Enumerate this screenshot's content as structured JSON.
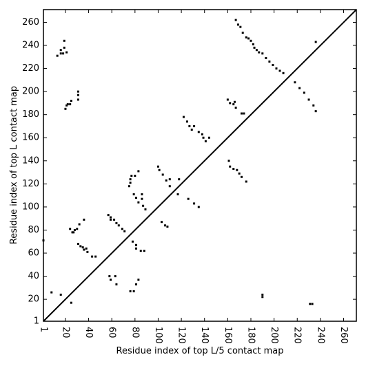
{
  "chart_data": {
    "type": "scatter",
    "x_label": "Residue index of top L/5 contact map",
    "y_label": "Residue index of top L contact map",
    "color": "#000000",
    "xlim": [
      1,
      271
    ],
    "ylim": [
      1,
      271
    ],
    "xticks": [
      1,
      20,
      40,
      60,
      80,
      100,
      120,
      140,
      160,
      180,
      200,
      220,
      240,
      260
    ],
    "yticks": [
      1,
      20,
      40,
      60,
      80,
      100,
      120,
      140,
      160,
      180,
      200,
      220,
      240,
      260
    ],
    "x": [
      1,
      13,
      16,
      16,
      19,
      18,
      21,
      19,
      20,
      21,
      22,
      24,
      25,
      31,
      31,
      31,
      24,
      26,
      27,
      28,
      30,
      32,
      36,
      31,
      33,
      35,
      36,
      38,
      39,
      43,
      46,
      57,
      59,
      59,
      62,
      64,
      66,
      69,
      71,
      75,
      76,
      76,
      77,
      80,
      83,
      79,
      81,
      83,
      86,
      86,
      87,
      89,
      100,
      101,
      104,
      107,
      110,
      110,
      118,
      117,
      122,
      125,
      127,
      129,
      131,
      135,
      138,
      139,
      141,
      144,
      167,
      169,
      171,
      173,
      176,
      178,
      180,
      182,
      183,
      185,
      187,
      190,
      193,
      196,
      199,
      202,
      205,
      208,
      218,
      222,
      226,
      230,
      234,
      236,
      236,
      126,
      131,
      135,
      103,
      106,
      108,
      8,
      16,
      25,
      58,
      59,
      63,
      64,
      76,
      79,
      81,
      83,
      78,
      81,
      81,
      85,
      88,
      160,
      162,
      165,
      167,
      166,
      161,
      162,
      165,
      168,
      170,
      172,
      176,
      172,
      174,
      190,
      190,
      231,
      233
    ],
    "y": [
      71,
      231,
      233,
      236,
      238,
      233,
      234,
      244,
      185,
      188,
      189,
      189,
      192,
      193,
      197,
      200,
      81,
      78,
      78,
      80,
      81,
      85,
      89,
      68,
      66,
      65,
      63,
      64,
      61,
      57,
      57,
      93,
      91,
      89,
      89,
      86,
      84,
      81,
      79,
      118,
      121,
      124,
      127,
      127,
      131,
      111,
      108,
      104,
      107,
      111,
      101,
      98,
      135,
      132,
      128,
      123,
      118,
      124,
      124,
      111,
      178,
      174,
      170,
      167,
      170,
      165,
      163,
      160,
      157,
      160,
      262,
      258,
      256,
      251,
      247,
      246,
      244,
      241,
      238,
      236,
      234,
      233,
      229,
      226,
      223,
      220,
      218,
      216,
      208,
      203,
      199,
      193,
      188,
      183,
      243,
      107,
      103,
      100,
      87,
      84,
      83,
      26,
      24,
      17,
      40,
      37,
      40,
      33,
      27,
      27,
      33,
      37,
      70,
      67,
      64,
      62,
      62,
      193,
      190,
      189,
      186,
      191,
      140,
      135,
      133,
      132,
      129,
      126,
      122,
      181,
      181,
      24,
      22,
      16,
      16
    ]
  }
}
